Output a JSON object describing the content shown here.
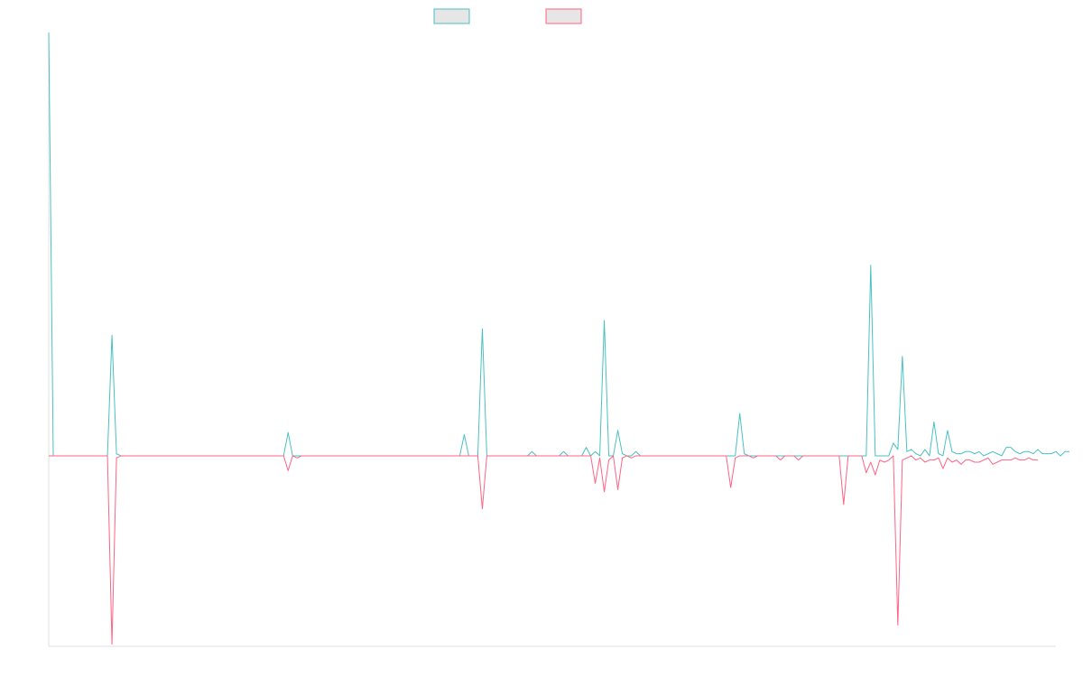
{
  "chart_data": {
    "type": "line",
    "title": "",
    "xlabel": "",
    "ylabel": "",
    "x_count": 224,
    "ylim": [
      -0.9,
      2.0
    ],
    "grid": false,
    "legend_placement": "top-center",
    "series": [
      {
        "color": "#4bc0c0",
        "legend_fill": "#e6e6e6",
        "values": [
          2.0,
          0.0,
          0.0,
          0.0,
          0.0,
          0.0,
          0.0,
          0.0,
          0.0,
          0.0,
          0.0,
          0.0,
          0.0,
          0.0,
          0.57,
          0.01,
          0.0,
          0.0,
          0.0,
          0.0,
          0.0,
          0.0,
          0.0,
          0.0,
          0.0,
          0.0,
          0.0,
          0.0,
          0.0,
          0.0,
          0.0,
          0.0,
          0.0,
          0.0,
          0.0,
          0.0,
          0.0,
          0.0,
          0.0,
          0.0,
          0.0,
          0.0,
          0.0,
          0.0,
          0.0,
          0.0,
          0.0,
          0.0,
          0.0,
          0.0,
          0.0,
          0.0,
          0.0,
          0.11,
          0.0,
          0.0,
          0.0,
          0.0,
          0.0,
          0.0,
          0.0,
          0.0,
          0.0,
          0.0,
          0.0,
          0.0,
          0.0,
          0.0,
          0.0,
          0.0,
          0.0,
          0.0,
          0.0,
          0.0,
          0.0,
          0.0,
          0.0,
          0.0,
          0.0,
          0.0,
          0.0,
          0.0,
          0.0,
          0.0,
          0.0,
          0.0,
          0.0,
          0.0,
          0.0,
          0.0,
          0.0,
          0.0,
          0.1,
          0.0,
          0.0,
          0.0,
          0.6,
          0.0,
          0.0,
          0.0,
          0.0,
          0.0,
          0.0,
          0.0,
          0.0,
          0.0,
          0.0,
          0.02,
          0.0,
          0.0,
          0.0,
          0.0,
          0.0,
          0.0,
          0.02,
          0.0,
          0.0,
          0.0,
          0.0,
          0.04,
          0.0,
          0.02,
          0.0,
          0.64,
          0.0,
          0.0,
          0.12,
          0.01,
          0.0,
          0.0,
          0.02,
          0.0,
          0.0,
          0.0,
          0.0,
          0.0,
          0.0,
          0.0,
          0.0,
          0.0,
          0.0,
          0.0,
          0.0,
          0.0,
          0.0,
          0.0,
          0.0,
          0.0,
          0.0,
          0.0,
          0.0,
          0.0,
          0.0,
          0.2,
          0.01,
          0.0,
          0.0,
          0.0,
          0.0,
          0.0,
          0.0,
          0.0,
          0.0,
          0.0,
          0.0,
          0.0,
          0.0,
          0.0,
          0.0,
          0.0,
          0.0,
          0.0,
          0.0,
          0.0,
          0.0,
          0.0,
          0.0,
          0.0,
          0.0,
          0.0,
          0.0,
          0.0,
          0.9,
          0.0,
          0.0,
          0.0,
          0.0,
          0.06,
          0.03,
          0.47,
          0.02,
          0.03,
          0.01,
          0.0,
          0.03,
          0.0,
          0.16,
          0.01,
          0.0,
          0.12,
          0.02,
          0.01,
          0.01,
          0.02,
          0.02,
          0.01,
          0.02,
          0.0,
          0.01,
          0.02,
          0.01,
          0.0,
          0.04,
          0.04,
          0.02,
          0.01,
          0.02,
          0.02,
          0.01,
          0.03,
          0.01,
          0.01,
          0.01,
          0.02,
          0.0,
          0.02,
          0.02
        ]
      },
      {
        "color": "#ff6384",
        "legend_fill": "#e6e6e6",
        "values": [
          0.0,
          0.0,
          0.0,
          0.0,
          0.0,
          0.0,
          0.0,
          0.0,
          0.0,
          0.0,
          0.0,
          0.0,
          0.0,
          0.0,
          -0.89,
          -0.01,
          0.0,
          0.0,
          0.0,
          0.0,
          0.0,
          0.0,
          0.0,
          0.0,
          0.0,
          0.0,
          0.0,
          0.0,
          0.0,
          0.0,
          0.0,
          0.0,
          0.0,
          0.0,
          0.0,
          0.0,
          0.0,
          0.0,
          0.0,
          0.0,
          0.0,
          0.0,
          0.0,
          0.0,
          0.0,
          0.0,
          0.0,
          0.0,
          0.0,
          0.0,
          0.0,
          0.0,
          0.0,
          -0.07,
          0.0,
          -0.01,
          0.0,
          0.0,
          0.0,
          0.0,
          0.0,
          0.0,
          0.0,
          0.0,
          0.0,
          0.0,
          0.0,
          0.0,
          0.0,
          0.0,
          0.0,
          0.0,
          0.0,
          0.0,
          0.0,
          0.0,
          0.0,
          0.0,
          0.0,
          0.0,
          0.0,
          0.0,
          0.0,
          0.0,
          0.0,
          0.0,
          0.0,
          0.0,
          0.0,
          0.0,
          0.0,
          0.0,
          0.0,
          0.0,
          0.0,
          0.0,
          -0.25,
          0.0,
          0.0,
          0.0,
          0.0,
          0.0,
          0.0,
          0.0,
          0.0,
          0.0,
          0.0,
          0.0,
          0.0,
          0.0,
          0.0,
          0.0,
          0.0,
          0.0,
          0.0,
          0.0,
          0.0,
          0.0,
          0.0,
          0.0,
          0.0,
          -0.13,
          -0.01,
          -0.17,
          -0.02,
          0.0,
          -0.16,
          -0.01,
          0.0,
          -0.01,
          0.0,
          0.0,
          0.0,
          0.0,
          0.0,
          0.0,
          0.0,
          0.0,
          0.0,
          0.0,
          0.0,
          0.0,
          0.0,
          0.0,
          0.0,
          0.0,
          0.0,
          0.0,
          0.0,
          0.0,
          0.0,
          -0.15,
          -0.01,
          0.0,
          0.0,
          0.0,
          -0.01,
          0.0,
          0.0,
          0.0,
          0.0,
          0.0,
          -0.02,
          0.0,
          0.0,
          0.0,
          -0.02,
          0.0,
          0.0,
          0.0,
          0.0,
          0.0,
          0.0,
          0.0,
          0.0,
          0.0,
          -0.23,
          0.0,
          0.0,
          0.0,
          0.0,
          -0.08,
          -0.03,
          -0.09,
          -0.02,
          -0.03,
          -0.02,
          0.0,
          -0.8,
          -0.02,
          -0.01,
          0.0,
          -0.02,
          -0.01,
          -0.03,
          -0.02,
          -0.02,
          -0.01,
          -0.06,
          -0.01,
          -0.03,
          -0.02,
          -0.04,
          -0.02,
          -0.02,
          -0.03,
          -0.03,
          -0.02,
          -0.01,
          -0.04,
          -0.03,
          -0.02,
          -0.02,
          -0.02,
          -0.01,
          -0.02,
          -0.02,
          -0.01,
          -0.02,
          -0.02
        ]
      }
    ]
  }
}
